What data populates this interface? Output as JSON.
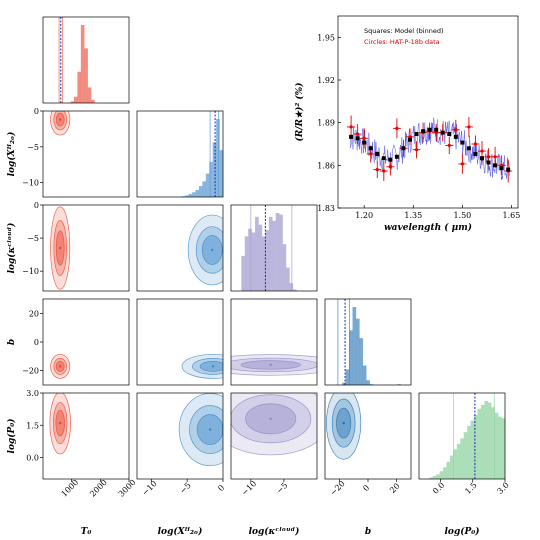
{
  "figure": {
    "variables": [
      {
        "key": "T0",
        "label": "T₀",
        "range": [
          0,
          3000
        ],
        "ticks": [
          "1000",
          "2000",
          "3000"
        ],
        "color": "#e8422c"
      },
      {
        "key": "logXH2O",
        "label": "log(Xᴴ₂ₒ)",
        "range": [
          -12,
          0
        ],
        "ticks": [
          "−10",
          "−5",
          "0"
        ],
        "color": "#3a86c8"
      },
      {
        "key": "logkcloud",
        "label": "log(κᶜˡᵒᵘᵈ)",
        "range": [
          -13,
          0
        ],
        "ticks": [
          "−10",
          "−5"
        ],
        "color": "#8e87c4"
      },
      {
        "key": "b",
        "label": "b",
        "range": [
          -30,
          30
        ],
        "ticks": [
          "−20",
          "0",
          "20"
        ],
        "color": "#1f6fb0"
      },
      {
        "key": "logP0",
        "label": "log(P₀)",
        "range": [
          -1,
          3
        ],
        "ticks": [
          "0.0",
          "1.5",
          "3.0"
        ],
        "color": "#74c98a"
      }
    ],
    "row_ticks": {
      "logXH2O": [
        "0",
        "−5",
        "−10"
      ],
      "logkcloud": [
        "0",
        "−5",
        "−10"
      ],
      "b": [
        "20",
        "0",
        "−20"
      ],
      "logP0": [
        "3.0",
        "1.5",
        "0.0"
      ]
    },
    "diag_hist": {
      "T0": [
        0,
        0,
        0,
        0,
        0,
        0,
        0,
        0,
        2,
        8,
        40,
        100,
        70,
        20,
        4,
        0,
        0,
        0,
        0,
        0,
        0,
        0,
        0,
        0,
        0
      ],
      "logXH2O": [
        0,
        0,
        0,
        0,
        0,
        0,
        0,
        0,
        0,
        0,
        0,
        0,
        0,
        1,
        2,
        4,
        6,
        9,
        14,
        20,
        30,
        45,
        70,
        100,
        60
      ],
      "logkcloud": [
        0,
        0,
        0,
        45,
        70,
        80,
        75,
        95,
        85,
        70,
        78,
        95,
        90,
        100,
        98,
        60,
        30,
        10,
        2,
        0,
        0,
        0,
        0,
        0,
        0
      ],
      "b": [
        0,
        0,
        0,
        0,
        0,
        3,
        20,
        70,
        100,
        85,
        60,
        25,
        6,
        1,
        0,
        0,
        0,
        0,
        0,
        0,
        0,
        1,
        0,
        0,
        0
      ],
      "logP0": [
        0,
        0,
        0,
        2,
        4,
        6,
        10,
        15,
        22,
        30,
        38,
        45,
        52,
        60,
        68,
        75,
        82,
        90,
        95,
        100,
        98,
        92,
        85,
        80,
        78
      ]
    },
    "quantiles": {
      "T0": [
        560,
        620,
        680
      ],
      "logXH2O": [
        -1.8,
        -1.1,
        -0.6
      ],
      "logkcloud": [
        -10,
        -7.8,
        -3.8
      ],
      "b": [
        -21,
        -16,
        -13
      ],
      "logP0": [
        0.6,
        1.6,
        2.5
      ]
    },
    "pairs": {
      "logXH2O|T0": {
        "cx": 600,
        "cy": -1.2,
        "sx": 140,
        "sy": 0.9
      },
      "logkcloud|T0": {
        "cx": 600,
        "cy": -6.5,
        "sx": 140,
        "sy": 2.6
      },
      "b|T0": {
        "cx": 600,
        "cy": -17,
        "sx": 140,
        "sy": 3.5
      },
      "logP0|T0": {
        "cx": 600,
        "cy": 1.6,
        "sx": 150,
        "sy": 0.6
      },
      "logkcloud|logXH2O": {
        "cx": -1.5,
        "cy": -6.8,
        "sx": 1.4,
        "sy": 2.2
      },
      "b|logXH2O": {
        "cx": -1.4,
        "cy": -17,
        "sx": 1.8,
        "sy": 3.5
      },
      "logP0|logXH2O": {
        "cx": -1.8,
        "cy": 1.3,
        "sx": 1.8,
        "sy": 0.7
      },
      "b|logkcloud": {
        "cx": -7,
        "cy": -16,
        "sx": 4.5,
        "sy": 3.0
      },
      "logP0|logkcloud": {
        "cx": -7,
        "cy": 1.8,
        "sx": 3.8,
        "sy": 0.7
      },
      "logP0|b": {
        "cx": -17,
        "cy": 1.6,
        "sx": 5,
        "sy": 0.7
      }
    }
  },
  "chart_data": {
    "type": "scatter",
    "xlabel": "wavelength ( μm)",
    "ylabel": "(R/R★)² (%)",
    "xlim": [
      1.12,
      1.67
    ],
    "ylim": [
      1.83,
      1.965
    ],
    "xticks": [
      "1.20",
      "1.35",
      "1.50",
      "1.65"
    ],
    "yticks": [
      "1.83",
      "1.86",
      "1.89",
      "1.92",
      "1.95"
    ],
    "legend": [
      {
        "text": "Squares: Model (binned)",
        "color": "#000000"
      },
      {
        "text": "Circles: HAT-P-18b data",
        "color": "#e60000"
      }
    ],
    "model_binned": {
      "x": [
        1.16,
        1.18,
        1.2,
        1.22,
        1.24,
        1.26,
        1.28,
        1.3,
        1.32,
        1.34,
        1.36,
        1.38,
        1.4,
        1.42,
        1.44,
        1.46,
        1.48,
        1.5,
        1.52,
        1.54,
        1.56,
        1.58,
        1.6,
        1.62,
        1.64
      ],
      "y": [
        1.88,
        1.879,
        1.876,
        1.872,
        1.868,
        1.865,
        1.864,
        1.866,
        1.872,
        1.878,
        1.882,
        1.884,
        1.885,
        1.885,
        1.883,
        1.882,
        1.88,
        1.876,
        1.872,
        1.868,
        1.865,
        1.862,
        1.86,
        1.858,
        1.857
      ]
    },
    "data": {
      "x": [
        1.16,
        1.18,
        1.2,
        1.22,
        1.24,
        1.26,
        1.28,
        1.3,
        1.32,
        1.34,
        1.36,
        1.38,
        1.4,
        1.42,
        1.44,
        1.46,
        1.48,
        1.5,
        1.52,
        1.54,
        1.56,
        1.58,
        1.6,
        1.62,
        1.64
      ],
      "y": [
        1.887,
        1.882,
        1.879,
        1.868,
        1.857,
        1.856,
        1.859,
        1.886,
        1.872,
        1.88,
        1.871,
        1.883,
        1.884,
        1.883,
        1.883,
        1.874,
        1.885,
        1.861,
        1.887,
        1.875,
        1.87,
        1.866,
        1.866,
        1.86,
        1.856
      ],
      "err": [
        0.008,
        0.007,
        0.007,
        0.006,
        0.006,
        0.007,
        0.006,
        0.007,
        0.006,
        0.006,
        0.006,
        0.007,
        0.006,
        0.006,
        0.006,
        0.006,
        0.007,
        0.007,
        0.007,
        0.006,
        0.007,
        0.006,
        0.007,
        0.007,
        0.008
      ]
    }
  }
}
